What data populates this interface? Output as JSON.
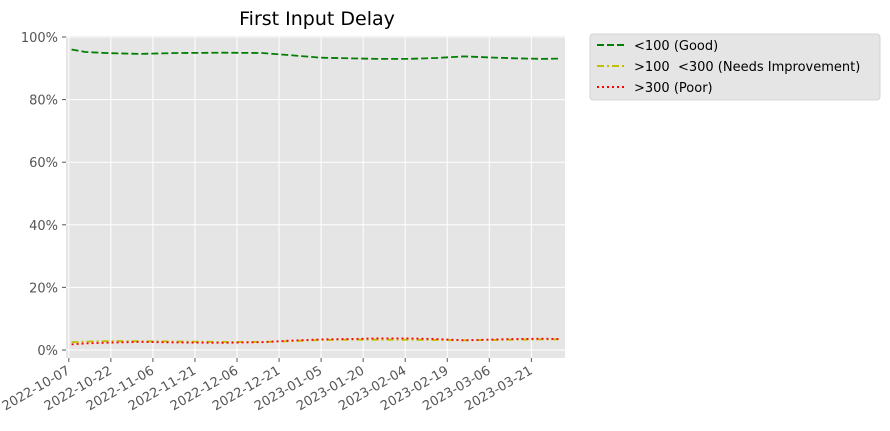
{
  "chart_data": {
    "type": "line",
    "title": "First Input Delay",
    "xlabel": "",
    "ylabel": "",
    "ylim": [
      0,
      100
    ],
    "y_ticks": [
      "0%",
      "20%",
      "40%",
      "60%",
      "80%",
      "100%"
    ],
    "x_ticks": [
      "2022-10-07",
      "2022-10-22",
      "2022-11-06",
      "2022-11-21",
      "2022-12-06",
      "2022-12-21",
      "2023-01-05",
      "2023-01-20",
      "2023-02-04",
      "2023-02-19",
      "2023-03-06",
      "2023-03-21"
    ],
    "x_range": [
      "2022-10-06",
      "2023-04-02"
    ],
    "grid": true,
    "legend_position": "outside-top-right",
    "background": "#e5e5e5",
    "x": [
      "2022-10-08",
      "2022-10-13",
      "2022-10-20",
      "2022-11-01",
      "2022-11-15",
      "2022-12-01",
      "2022-12-15",
      "2022-12-25",
      "2023-01-05",
      "2023-01-15",
      "2023-01-25",
      "2023-02-05",
      "2023-02-15",
      "2023-02-25",
      "2023-03-05",
      "2023-03-15",
      "2023-03-25",
      "2023-03-31"
    ],
    "series": [
      {
        "name": "<100 (Good)",
        "color": "#008000",
        "style": "dashed",
        "values": [
          96.0,
          95.2,
          94.9,
          94.6,
          94.9,
          95.0,
          94.9,
          94.2,
          93.4,
          93.2,
          93.0,
          93.0,
          93.3,
          93.8,
          93.5,
          93.2,
          93.0,
          93.1
        ]
      },
      {
        "name": ">100  <300 (Needs Improvement)",
        "color": "#bfbf00",
        "style": "dashdot",
        "values": [
          2.5,
          2.7,
          2.8,
          2.8,
          2.7,
          2.6,
          2.6,
          2.8,
          3.2,
          3.3,
          3.3,
          3.3,
          3.2,
          3.1,
          3.2,
          3.3,
          3.4,
          3.4
        ]
      },
      {
        "name": ">300 (Poor)",
        "color": "#ff0000",
        "style": "dotted",
        "values": [
          1.8,
          2.1,
          2.3,
          2.6,
          2.4,
          2.3,
          2.5,
          3.0,
          3.4,
          3.5,
          3.7,
          3.7,
          3.5,
          3.1,
          3.3,
          3.5,
          3.6,
          3.5
        ]
      }
    ]
  }
}
